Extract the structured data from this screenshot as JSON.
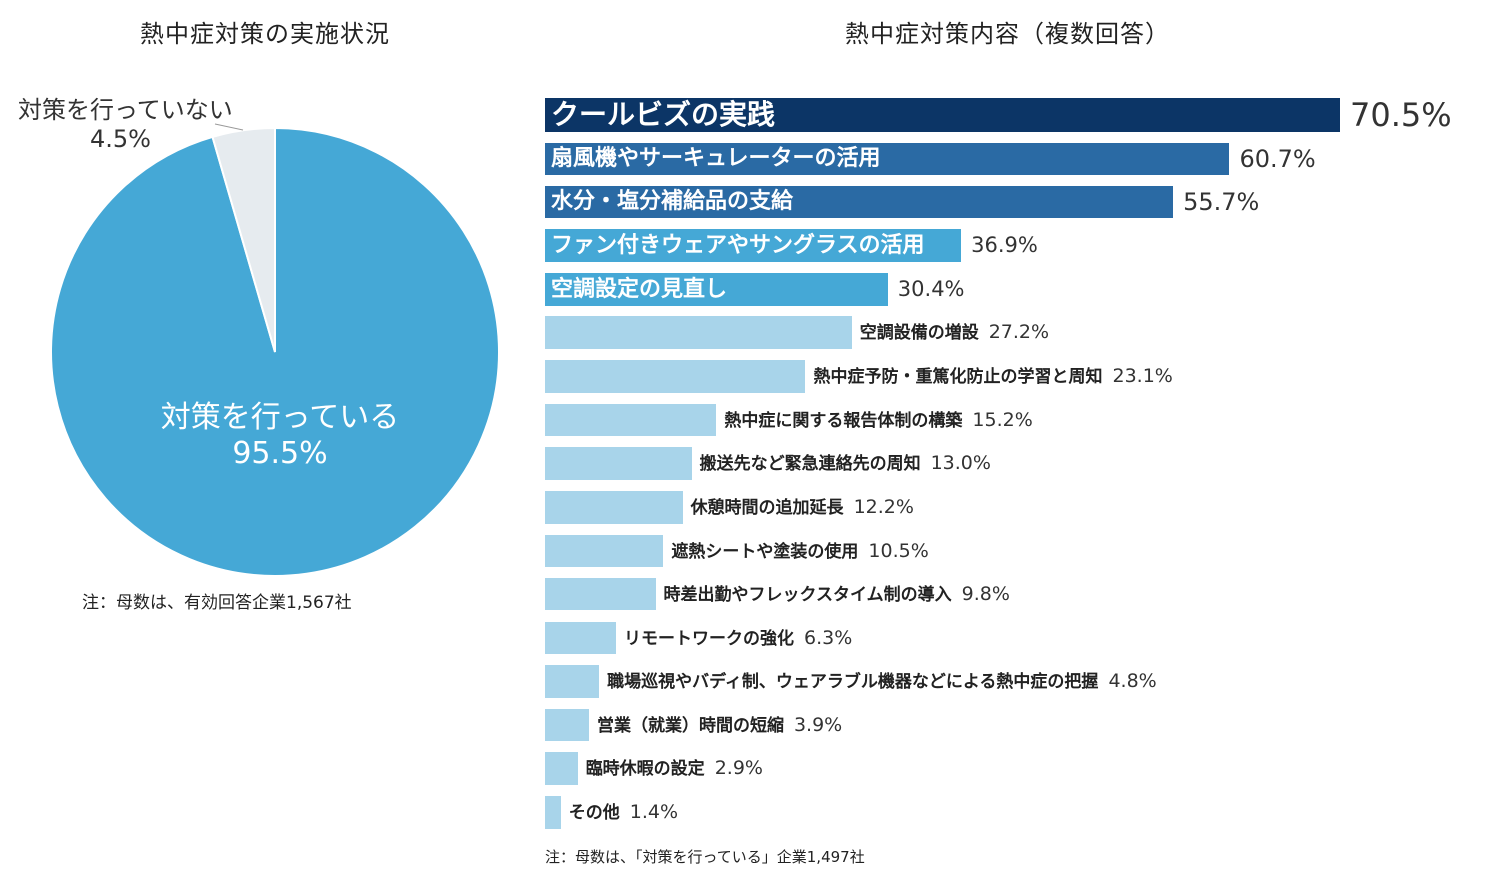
{
  "pie_chart": {
    "title": "熱中症対策の実施状況",
    "note": "注：母数は、有効回答企業1,567社",
    "colors": {
      "yes": "#45a8d6",
      "no": "#e6ebef"
    }
  },
  "bar_chart": {
    "title": "熱中症対策内容（複数回答）",
    "note": "注：母数は、「対策を行っている」企業1,497社"
  },
  "chart_data": [
    {
      "type": "pie",
      "title": "熱中症対策の実施状況",
      "slices": [
        {
          "label": "対策を行っている",
          "value": 95.5,
          "display": "95.5%"
        },
        {
          "label": "対策を行っていない",
          "value": 4.5,
          "display": "4.5%"
        }
      ]
    },
    {
      "type": "bar",
      "orientation": "horizontal",
      "title": "熱中症対策内容（複数回答）",
      "xlim": [
        0,
        70.5
      ],
      "categories": [
        "クールビズの実践",
        "扇風機やサーキュレーターの活用",
        "水分・塩分補給品の支給",
        "ファン付きウェアやサングラスの活用",
        "空調設定の見直し",
        "空調設備の増設",
        "熱中症予防・重篤化防止の学習と周知",
        "熱中症に関する報告体制の構築",
        "搬送先など緊急連絡先の周知",
        "休憩時間の追加延長",
        "遮熱シートや塗装の使用",
        "時差出勤やフレックスタイム制の導入",
        "リモートワークの強化",
        "職場巡視やバディ制、ウェアラブル機器などによる熱中症の把握",
        "営業（就業）時間の短縮",
        "臨時休暇の設定",
        "その他"
      ],
      "values": [
        70.5,
        60.7,
        55.7,
        36.9,
        30.4,
        27.2,
        23.1,
        15.2,
        13.0,
        12.2,
        10.5,
        9.8,
        6.3,
        4.8,
        3.9,
        2.9,
        1.4
      ],
      "value_labels": [
        "70.5%",
        "60.7%",
        "55.7%",
        "36.9%",
        "30.4%",
        "27.2%",
        "23.1%",
        "15.2%",
        "13.0%",
        "12.2%",
        "10.5%",
        "9.8%",
        "6.3%",
        "4.8%",
        "3.9%",
        "2.9%",
        "1.4%"
      ],
      "colors": [
        "#0c3566",
        "#2a6aa4",
        "#2a6aa4",
        "#45a8d6",
        "#45a8d6",
        "#a8d4ea",
        "#a8d4ea",
        "#a8d4ea",
        "#a8d4ea",
        "#a8d4ea",
        "#a8d4ea",
        "#a8d4ea",
        "#a8d4ea",
        "#a8d4ea",
        "#a8d4ea",
        "#a8d4ea",
        "#a8d4ea"
      ]
    }
  ]
}
